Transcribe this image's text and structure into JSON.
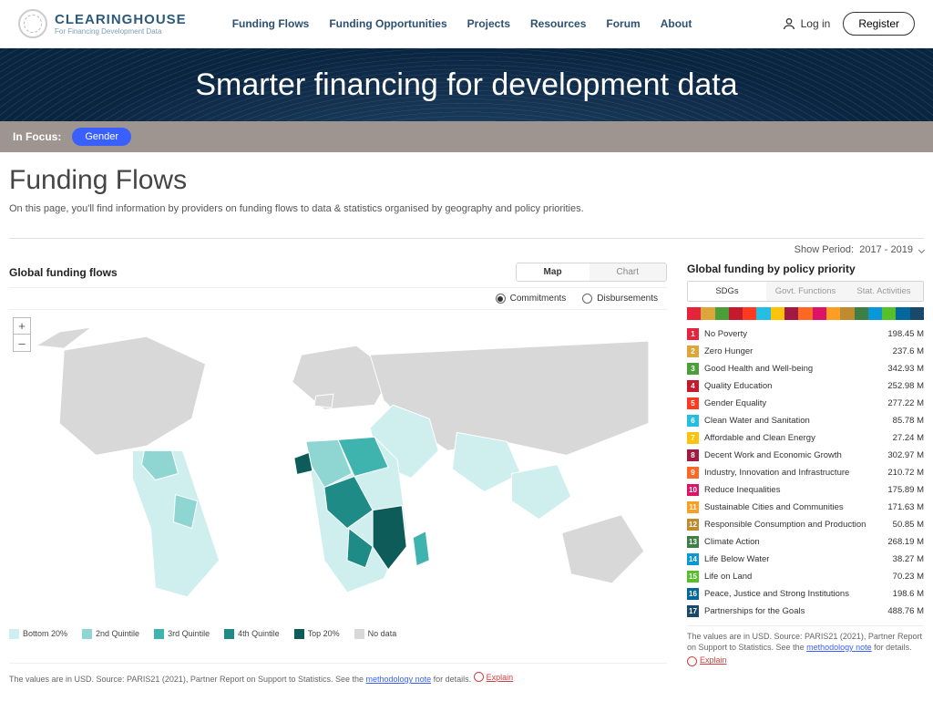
{
  "brand": {
    "title": "CLEARINGHOUSE",
    "subtitle": "For Financing Development Data"
  },
  "nav": [
    "Funding Flows",
    "Funding Opportunities",
    "Projects",
    "Resources",
    "Forum",
    "About"
  ],
  "auth": {
    "login": "Log in",
    "register": "Register"
  },
  "hero": "Smarter financing for development data",
  "focus": {
    "label": "In Focus:",
    "pill": "Gender"
  },
  "page": {
    "title": "Funding Flows",
    "desc": "On this page, you'll find information by providers on funding flows to data & statistics organised by geography and policy priorities."
  },
  "period": {
    "label": "Show Period:",
    "value": "2017 - 2019"
  },
  "left": {
    "title": "Global funding flows",
    "toggle": {
      "map": "Map",
      "chart": "Chart"
    },
    "radios": {
      "commit": "Commitments",
      "disb": "Disbursements"
    },
    "legend": [
      "Bottom 20%",
      "2nd Quintile",
      "3rd Quintile",
      "4th Quintile",
      "Top 20%",
      "No data"
    ],
    "legend_colors": [
      "#cfeeee",
      "#8fd5d2",
      "#3fb3ae",
      "#1e8b87",
      "#0d5c5a",
      "#d8d8d8"
    ],
    "footnote": "The values are in USD. Source: PARIS21 (2021), Partner Report on Support to Statistics. See the ",
    "footlink": "methodology note",
    "footnote2": " for details.",
    "explain": "Explain"
  },
  "right": {
    "title": "Global funding by policy priority",
    "tabs": [
      "SDGs",
      "Govt. Functions",
      "Stat. Activities"
    ],
    "sdgs": [
      {
        "n": 1,
        "label": "No Poverty",
        "v": "198.45 M",
        "c": "#e5243b"
      },
      {
        "n": 2,
        "label": "Zero Hunger",
        "v": "237.6 M",
        "c": "#dda63a"
      },
      {
        "n": 3,
        "label": "Good Health and Well-being",
        "v": "342.93 M",
        "c": "#4c9f38"
      },
      {
        "n": 4,
        "label": "Quality Education",
        "v": "252.98 M",
        "c": "#c5192d"
      },
      {
        "n": 5,
        "label": "Gender Equality",
        "v": "277.22 M",
        "c": "#ff3a21"
      },
      {
        "n": 6,
        "label": "Clean Water and Sanitation",
        "v": "85.78 M",
        "c": "#26bde2"
      },
      {
        "n": 7,
        "label": "Affordable and Clean Energy",
        "v": "27.24 M",
        "c": "#fcc30b"
      },
      {
        "n": 8,
        "label": "Decent Work and Economic Growth",
        "v": "302.97 M",
        "c": "#a21942"
      },
      {
        "n": 9,
        "label": "Industry, Innovation and Infrastructure",
        "v": "210.72 M",
        "c": "#fd6925"
      },
      {
        "n": 10,
        "label": "Reduce Inequalities",
        "v": "175.89 M",
        "c": "#dd1367"
      },
      {
        "n": 11,
        "label": "Sustainable Cities and Communities",
        "v": "171.63 M",
        "c": "#fd9d24"
      },
      {
        "n": 12,
        "label": "Responsible Consumption and Production",
        "v": "50.85 M",
        "c": "#bf8b2e"
      },
      {
        "n": 13,
        "label": "Climate Action",
        "v": "268.19 M",
        "c": "#3f7e44"
      },
      {
        "n": 14,
        "label": "Life Below Water",
        "v": "38.27 M",
        "c": "#0a97d9"
      },
      {
        "n": 15,
        "label": "Life on Land",
        "v": "70.23 M",
        "c": "#56c02b"
      },
      {
        "n": 16,
        "label": "Peace, Justice and Strong Institutions",
        "v": "198.6 M",
        "c": "#00689d"
      },
      {
        "n": 17,
        "label": "Partnerships for the Goals",
        "v": "488.76 M",
        "c": "#19486a"
      }
    ],
    "footnote": "The values are in USD. Source: PARIS21 (2021), Partner Report on Support to Statistics. See the ",
    "footlink": "methodology note",
    "footnote2": " for details.",
    "explain": "Explain"
  }
}
